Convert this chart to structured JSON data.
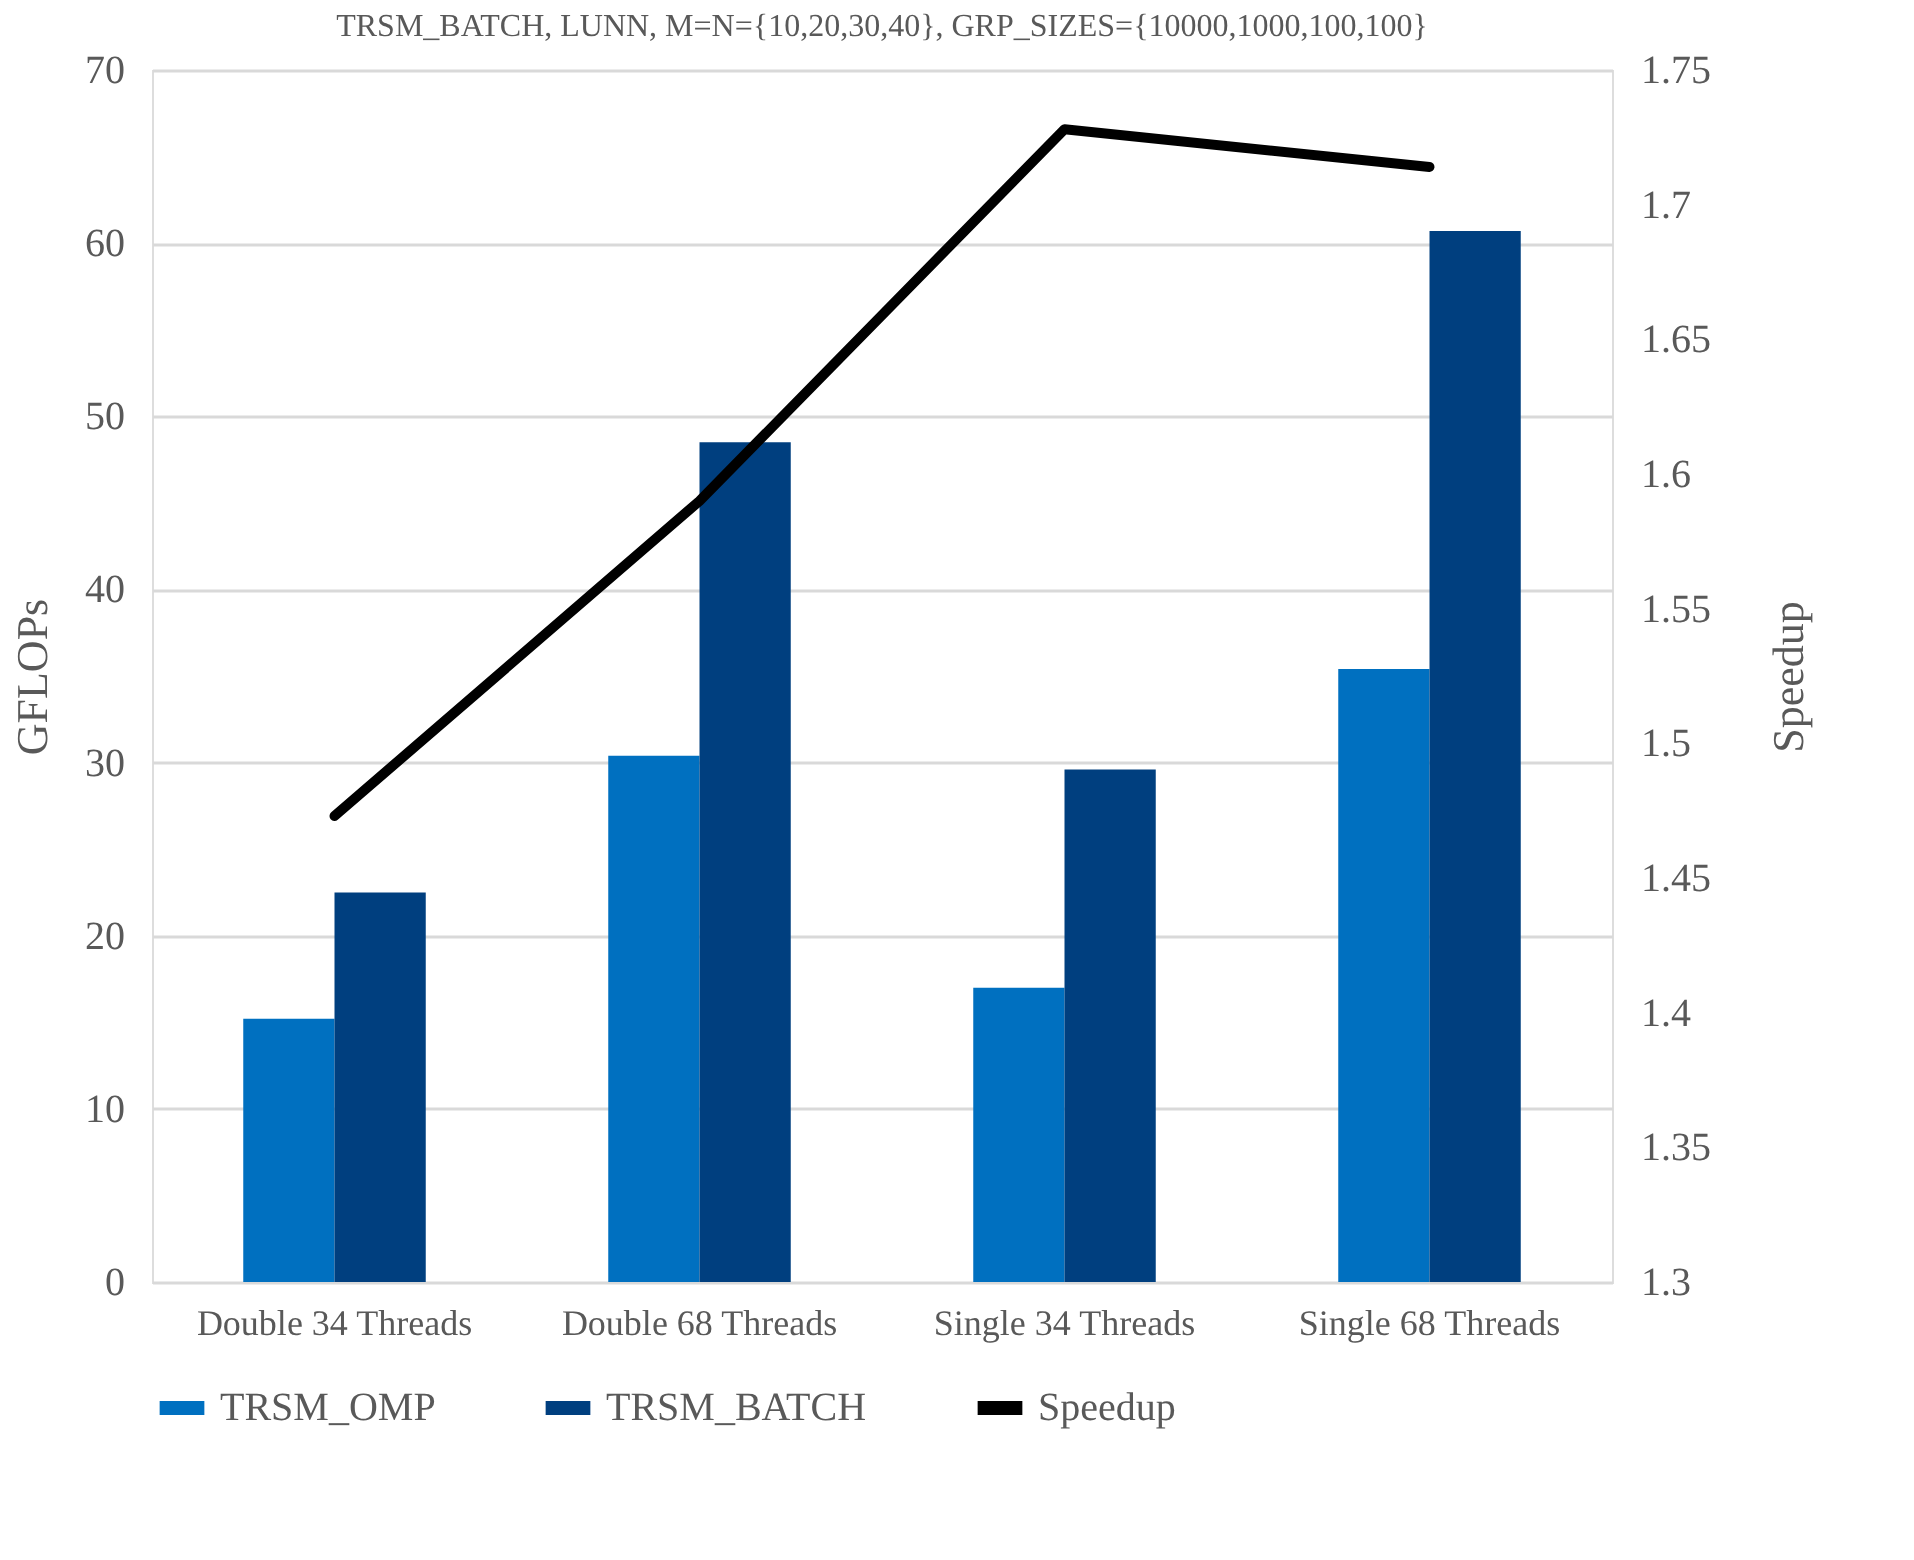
{
  "chart_data": {
    "type": "bar",
    "title": "TRSM_BATCH, LUNN, M=N={10,20,30,40}, GRP_SIZES={10000,1000,100,100}",
    "categories": [
      "Double 34 Threads",
      "Double 68 Threads",
      "Single 34 Threads",
      "Single 68 Threads"
    ],
    "series": [
      {
        "name": "TRSM_OMP",
        "color": "#0070c0",
        "values": [
          15.2,
          30.4,
          17.0,
          35.4
        ]
      },
      {
        "name": "TRSM_BATCH",
        "color": "#003f7f",
        "values": [
          22.5,
          48.5,
          29.6,
          60.7
        ]
      },
      {
        "name": "Speedup",
        "color": "#000000",
        "type": "line",
        "axis": "y2",
        "values": [
          1.473,
          1.59,
          1.728,
          1.714
        ]
      }
    ],
    "ylabel": "GFLOPs",
    "y2label": "Speedup",
    "ylim": [
      0,
      70
    ],
    "yticks": [
      0,
      10,
      20,
      30,
      40,
      50,
      60,
      70
    ],
    "y2lim": [
      1.3,
      1.75
    ],
    "y2ticks": [
      1.3,
      1.35,
      1.4,
      1.45,
      1.5,
      1.55,
      1.6,
      1.65,
      1.7,
      1.75
    ],
    "grid": "y",
    "legend": "bottom",
    "marker": "none",
    "line_style": "solid"
  }
}
